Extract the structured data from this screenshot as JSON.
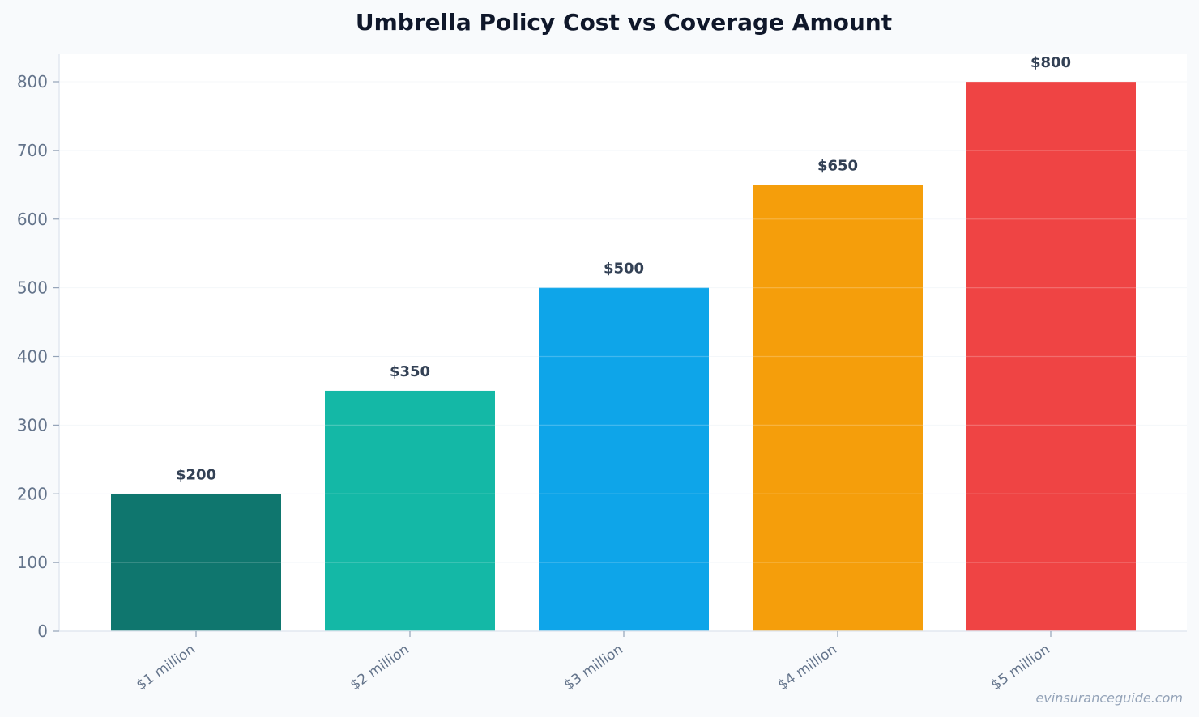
{
  "chart_data": {
    "type": "bar",
    "title": "Umbrella Policy Cost vs Coverage Amount",
    "xlabel": "",
    "ylabel": "",
    "categories": [
      "$1 million",
      "$2 million",
      "$3 million",
      "$4 million",
      "$5 million"
    ],
    "values": [
      200,
      350,
      500,
      650,
      800
    ],
    "data_labels": [
      "$200",
      "$350",
      "$500",
      "$650",
      "$800"
    ],
    "colors": [
      "#0f766e",
      "#14b8a6",
      "#0ea5e9",
      "#f59e0b",
      "#ef4444"
    ],
    "ylim": [
      0,
      840
    ],
    "yticks": [
      0,
      100,
      200,
      300,
      400,
      500,
      600,
      700,
      800
    ],
    "grid": true,
    "legend": "none"
  },
  "watermark": "evinsuranceguide.com"
}
